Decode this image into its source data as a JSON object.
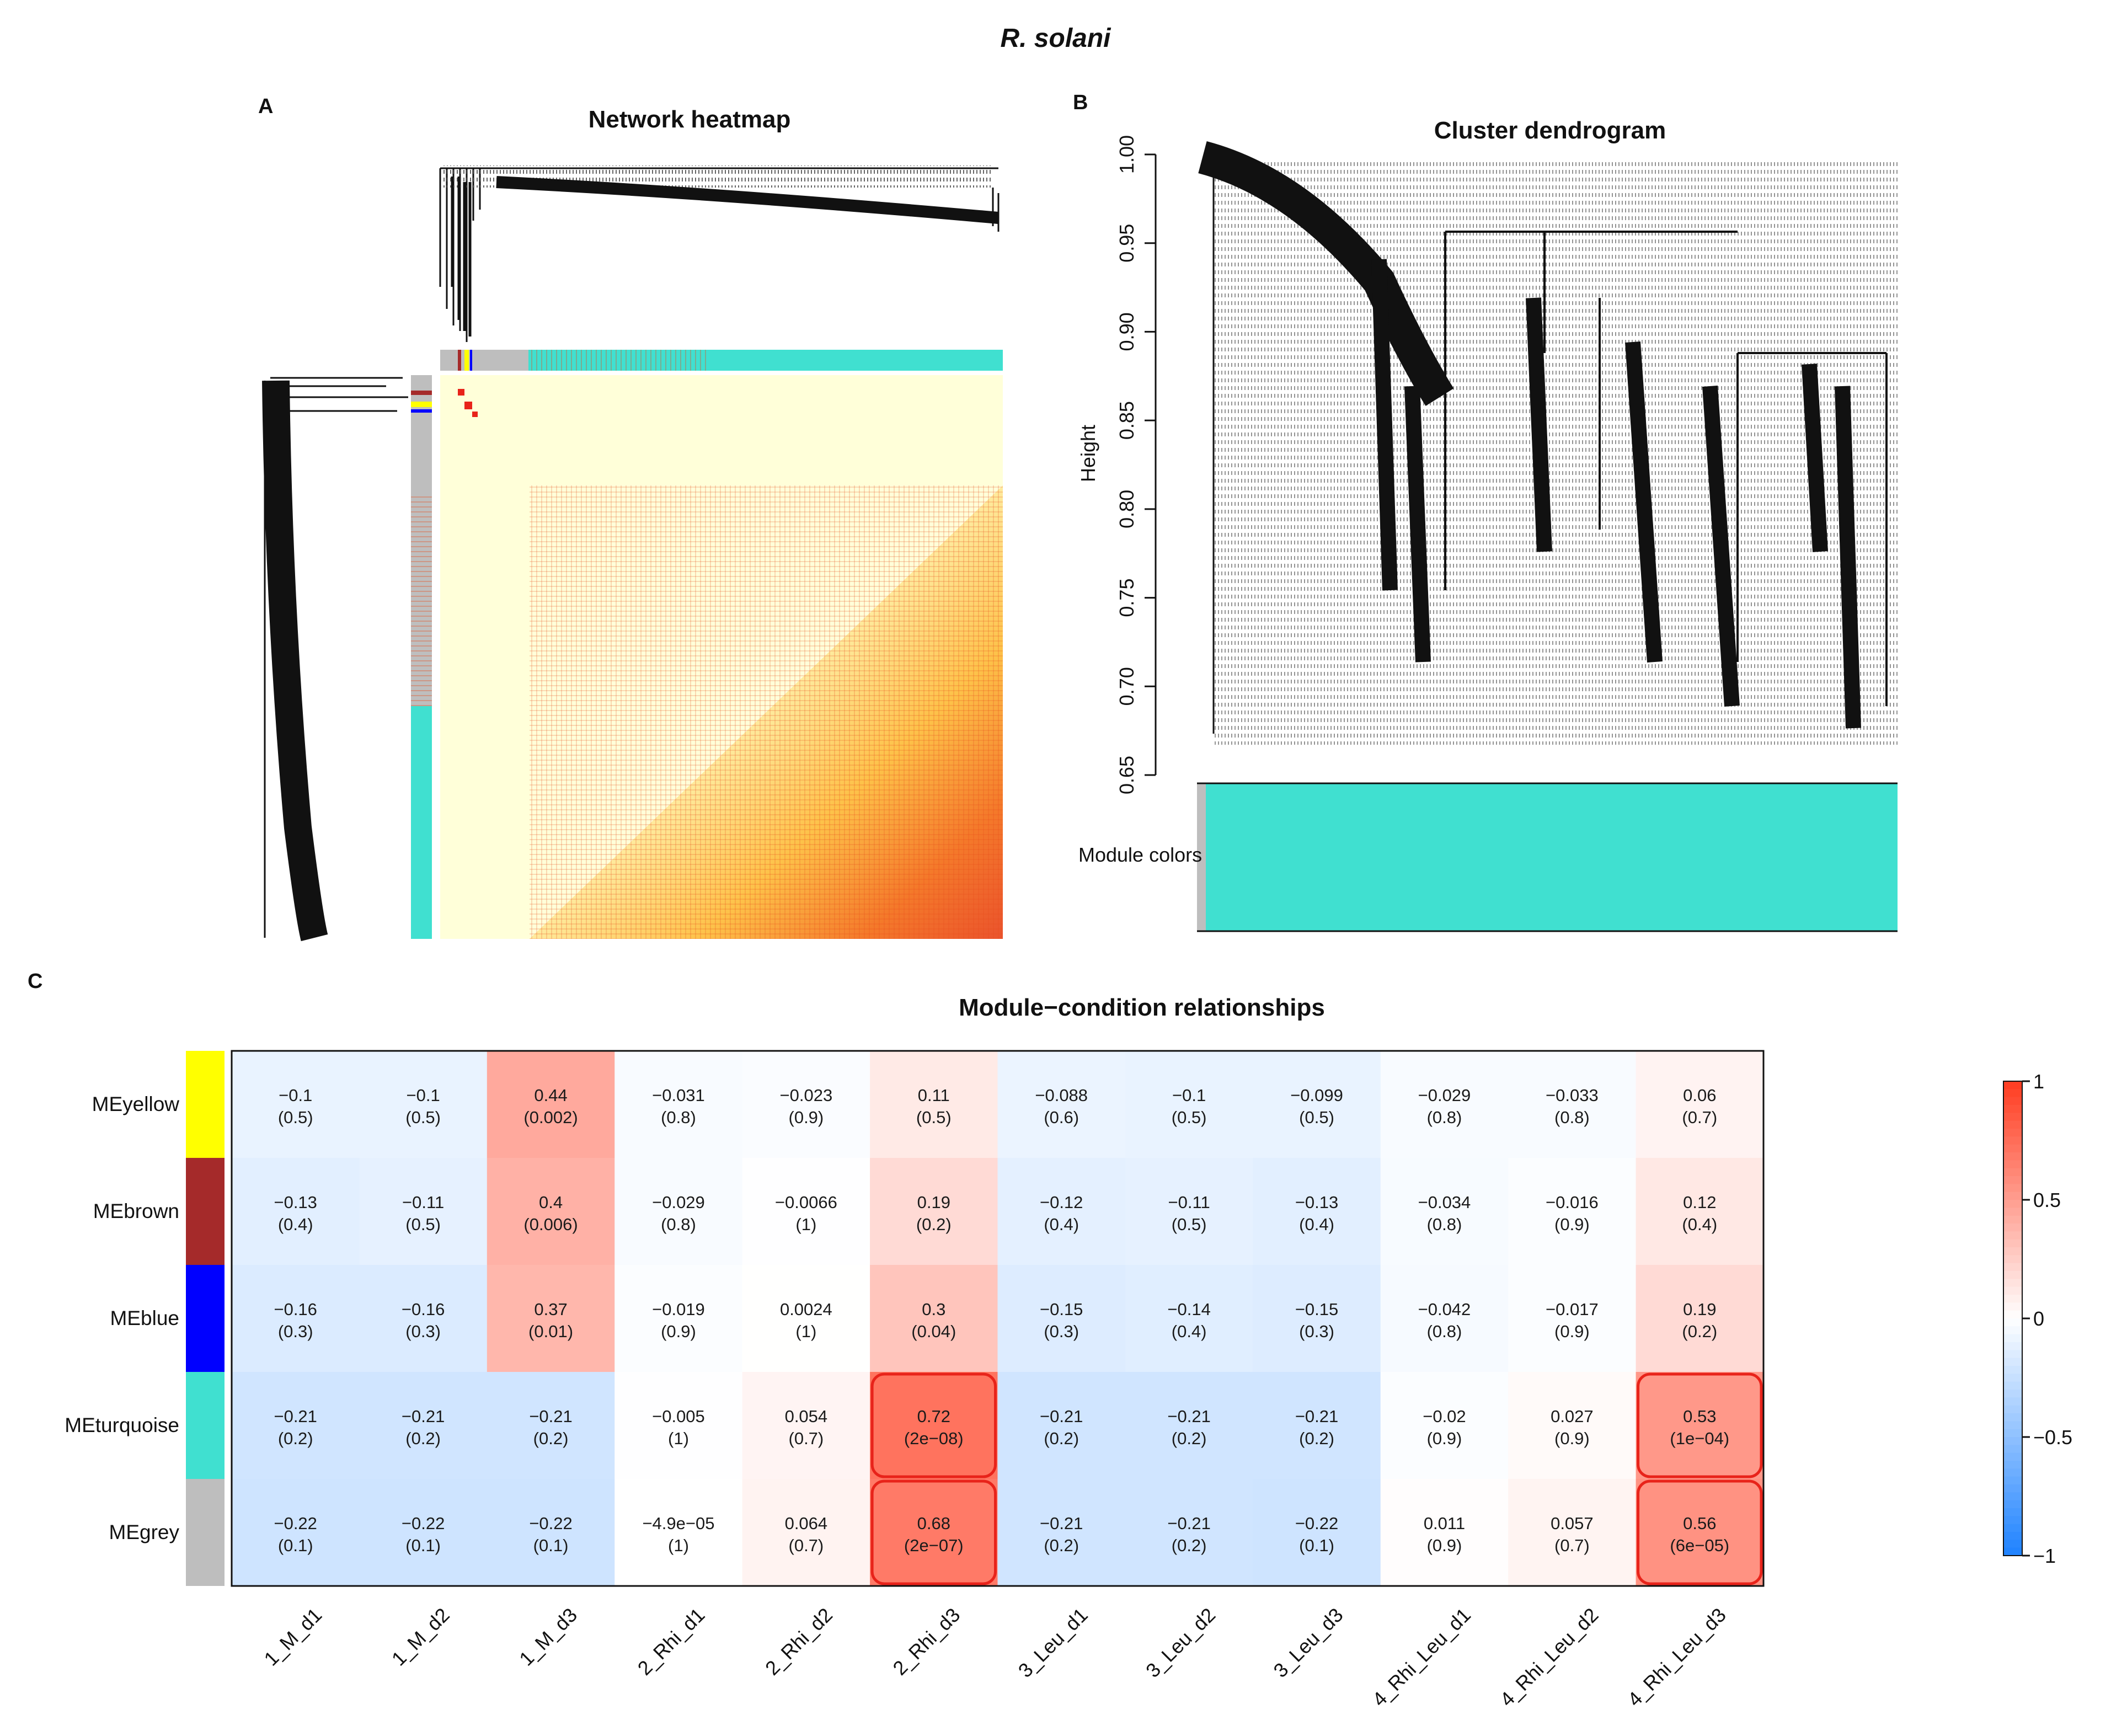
{
  "title": "R. solani",
  "panels": {
    "a": {
      "letter": "A",
      "title": "Network heatmap"
    },
    "b": {
      "letter": "B",
      "title": "Cluster dendrogram",
      "ylabel": "Height",
      "yticks": [
        "1.00",
        "0.95",
        "0.90",
        "0.85",
        "0.80",
        "0.75",
        "0.70",
        "0.65"
      ],
      "module_colors_label": "Module colors"
    },
    "c": {
      "letter": "C",
      "title": "Module−condition relationships"
    }
  },
  "colors": {
    "turquoise": "#40E0D0",
    "grey": "#BEBEBE",
    "yellow": "#FFFF00",
    "brown": "#A52A2A",
    "blue": "#0000FF",
    "highlight": "#E8231A"
  },
  "chart_data": {
    "type": "heatmap",
    "title": "Module−condition relationships",
    "rows": [
      "MEyellow",
      "MEbrown",
      "MEblue",
      "MEturquoise",
      "MEgrey"
    ],
    "row_colors": [
      "#FFFF00",
      "#A52A2A",
      "#0000FF",
      "#40E0D0",
      "#BEBEBE"
    ],
    "columns": [
      "1_M_d1",
      "1_M_d2",
      "1_M_d3",
      "2_Rhi_d1",
      "2_Rhi_d2",
      "2_Rhi_d3",
      "3_Leu_d1",
      "3_Leu_d2",
      "3_Leu_d3",
      "4_Rhi_Leu_d1",
      "4_Rhi_Leu_d2",
      "4_Rhi_Leu_d3"
    ],
    "values": [
      [
        "−0.1",
        "−0.1",
        "0.44",
        "−0.031",
        "−0.023",
        "0.11",
        "−0.088",
        "−0.1",
        "−0.099",
        "−0.029",
        "−0.033",
        "0.06"
      ],
      [
        "−0.13",
        "−0.11",
        "0.4",
        "−0.029",
        "−0.0066",
        "0.19",
        "−0.12",
        "−0.11",
        "−0.13",
        "−0.034",
        "−0.016",
        "0.12"
      ],
      [
        "−0.16",
        "−0.16",
        "0.37",
        "−0.019",
        "0.0024",
        "0.3",
        "−0.15",
        "−0.14",
        "−0.15",
        "−0.042",
        "−0.017",
        "0.19"
      ],
      [
        "−0.21",
        "−0.21",
        "−0.21",
        "−0.005",
        "0.054",
        "0.72",
        "−0.21",
        "−0.21",
        "−0.21",
        "−0.02",
        "0.027",
        "0.53"
      ],
      [
        "−0.22",
        "−0.22",
        "−0.22",
        "−4.9e−05",
        "0.064",
        "0.68",
        "−0.21",
        "−0.21",
        "−0.22",
        "0.011",
        "0.057",
        "0.56"
      ]
    ],
    "pvalues": [
      [
        "(0.5)",
        "(0.5)",
        "(0.002)",
        "(0.8)",
        "(0.9)",
        "(0.5)",
        "(0.6)",
        "(0.5)",
        "(0.5)",
        "(0.8)",
        "(0.8)",
        "(0.7)"
      ],
      [
        "(0.4)",
        "(0.5)",
        "(0.006)",
        "(0.8)",
        "(1)",
        "(0.2)",
        "(0.4)",
        "(0.5)",
        "(0.4)",
        "(0.8)",
        "(0.9)",
        "(0.4)"
      ],
      [
        "(0.3)",
        "(0.3)",
        "(0.01)",
        "(0.9)",
        "(1)",
        "(0.04)",
        "(0.3)",
        "(0.4)",
        "(0.3)",
        "(0.8)",
        "(0.9)",
        "(0.2)"
      ],
      [
        "(0.2)",
        "(0.2)",
        "(0.2)",
        "(1)",
        "(0.7)",
        "(2e−08)",
        "(0.2)",
        "(0.2)",
        "(0.2)",
        "(0.9)",
        "(0.9)",
        "(1e−04)"
      ],
      [
        "(0.1)",
        "(0.1)",
        "(0.1)",
        "(1)",
        "(0.7)",
        "(2e−07)",
        "(0.2)",
        "(0.2)",
        "(0.1)",
        "(0.9)",
        "(0.7)",
        "(6e−05)"
      ]
    ],
    "highlighted": [
      [
        3,
        5
      ],
      [
        4,
        5
      ],
      [
        3,
        11
      ],
      [
        4,
        11
      ]
    ],
    "colorbar": {
      "labels": [
        "1",
        "0.5",
        "0",
        "−0.5",
        "−1"
      ],
      "range": [
        -1,
        1
      ]
    }
  }
}
